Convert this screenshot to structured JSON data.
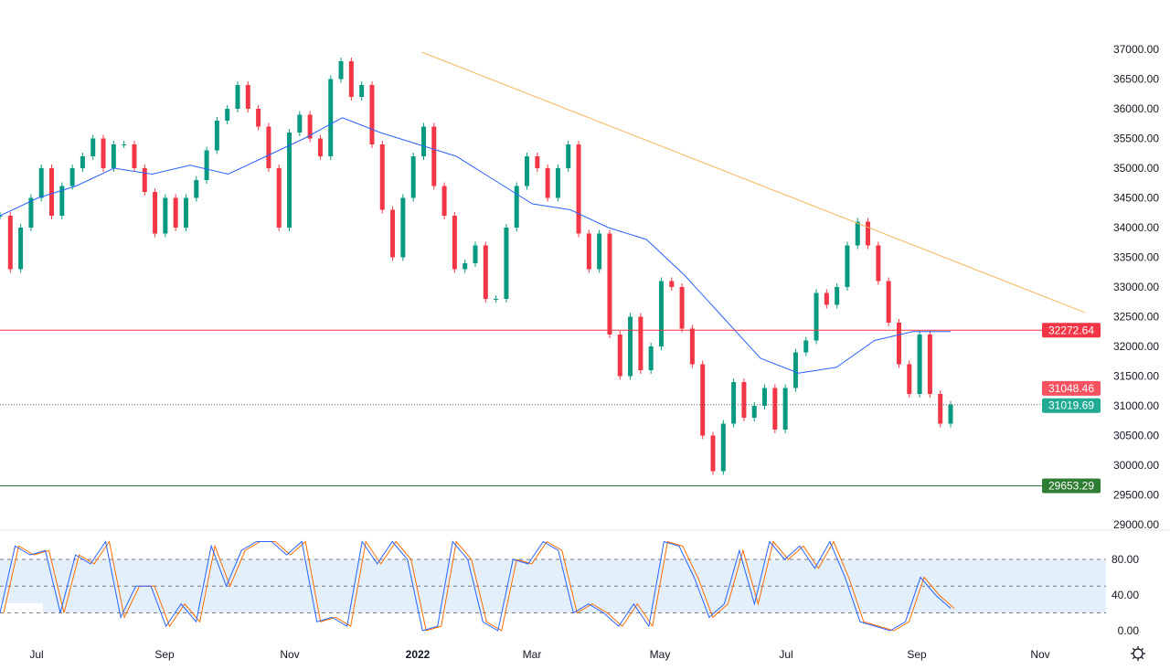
{
  "chart_data": [
    {
      "type": "candlestick",
      "x_tick_labels": [
        "Jul",
        "Sep",
        "Nov",
        "2022",
        "Mar",
        "May",
        "Jul",
        "Sep",
        "Nov"
      ],
      "y_tick_labels": [
        "37000.00",
        "36500.00",
        "36000.00",
        "35500.00",
        "35000.00",
        "34500.00",
        "34000.00",
        "33500.00",
        "33000.00",
        "32500.00",
        "32000.00",
        "31500.00",
        "31000.00",
        "30500.00",
        "30000.00",
        "29500.00",
        "29000.00"
      ],
      "ylim": [
        29000,
        37000
      ],
      "closes": [
        34200,
        33300,
        34000,
        34500,
        35000,
        34200,
        34700,
        35000,
        35200,
        35500,
        35000,
        35400,
        35400,
        35000,
        34600,
        33900,
        34500,
        34000,
        34500,
        34800,
        35300,
        35800,
        36000,
        36400,
        36000,
        35700,
        35000,
        34000,
        35600,
        35900,
        35500,
        35200,
        36500,
        36800,
        36200,
        36400,
        35400,
        34300,
        33500,
        34500,
        35200,
        35700,
        34700,
        34200,
        33300,
        33400,
        33700,
        32800,
        32800,
        34000,
        34700,
        35200,
        35000,
        34500,
        35000,
        35400,
        33900,
        33300,
        33900,
        32200,
        31500,
        32500,
        31600,
        32000,
        33100,
        33000,
        32300,
        31700,
        30500,
        29900,
        30700,
        31400,
        30800,
        31000,
        31300,
        30600,
        31300,
        31900,
        32100,
        32900,
        32700,
        33000,
        33700,
        34100,
        33700,
        33100,
        32400,
        31700,
        31200,
        32200,
        31200,
        30700,
        31020
      ],
      "moving_average": [
        34200,
        34500,
        34700,
        35000,
        34900,
        35050,
        34900,
        35200,
        35500,
        35850,
        35600,
        35400,
        35200,
        34800,
        34400,
        34300,
        34000,
        33800,
        33200,
        32500,
        31800,
        31550,
        31650,
        32100,
        32250,
        32250
      ],
      "trendline": [
        36950,
        32570
      ],
      "levels": [
        {
          "label": "32272.64",
          "value": 32272.64,
          "color": "#f23645"
        },
        {
          "label": "31048.46",
          "value": 31048.46,
          "color": "#f7525f"
        },
        {
          "label": "31019.69",
          "value": 31019.69,
          "color": "#22ab94"
        },
        {
          "label": "29653.29",
          "value": 29653.29,
          "color": "#2e7d32"
        }
      ],
      "colors": {
        "up": "#089981",
        "down": "#f23645",
        "ma": "#2962ff",
        "trend": "#f5b85c"
      }
    },
    {
      "type": "line",
      "indicator": "stochastic",
      "y_tick_labels": [
        "80.00",
        "40.00",
        "0.00"
      ],
      "ylim": [
        0,
        100
      ],
      "bands": [
        20,
        50,
        80
      ],
      "k": [
        20,
        95,
        85,
        90,
        20,
        85,
        75,
        100,
        15,
        50,
        50,
        5,
        30,
        10,
        95,
        50,
        90,
        100,
        100,
        85,
        100,
        10,
        15,
        5,
        100,
        75,
        100,
        80,
        0,
        5,
        100,
        80,
        10,
        0,
        80,
        75,
        100,
        90,
        20,
        30,
        20,
        5,
        30,
        5,
        100,
        95,
        60,
        15,
        30,
        90,
        30,
        100,
        80,
        95,
        70,
        100,
        60,
        10,
        5,
        0,
        10,
        60,
        40,
        25
      ],
      "colors": {
        "k": "#2962ff",
        "d": "#ff6d00",
        "band": "#e3f0fc"
      }
    }
  ],
  "gear_icon": "settings-gear-icon"
}
